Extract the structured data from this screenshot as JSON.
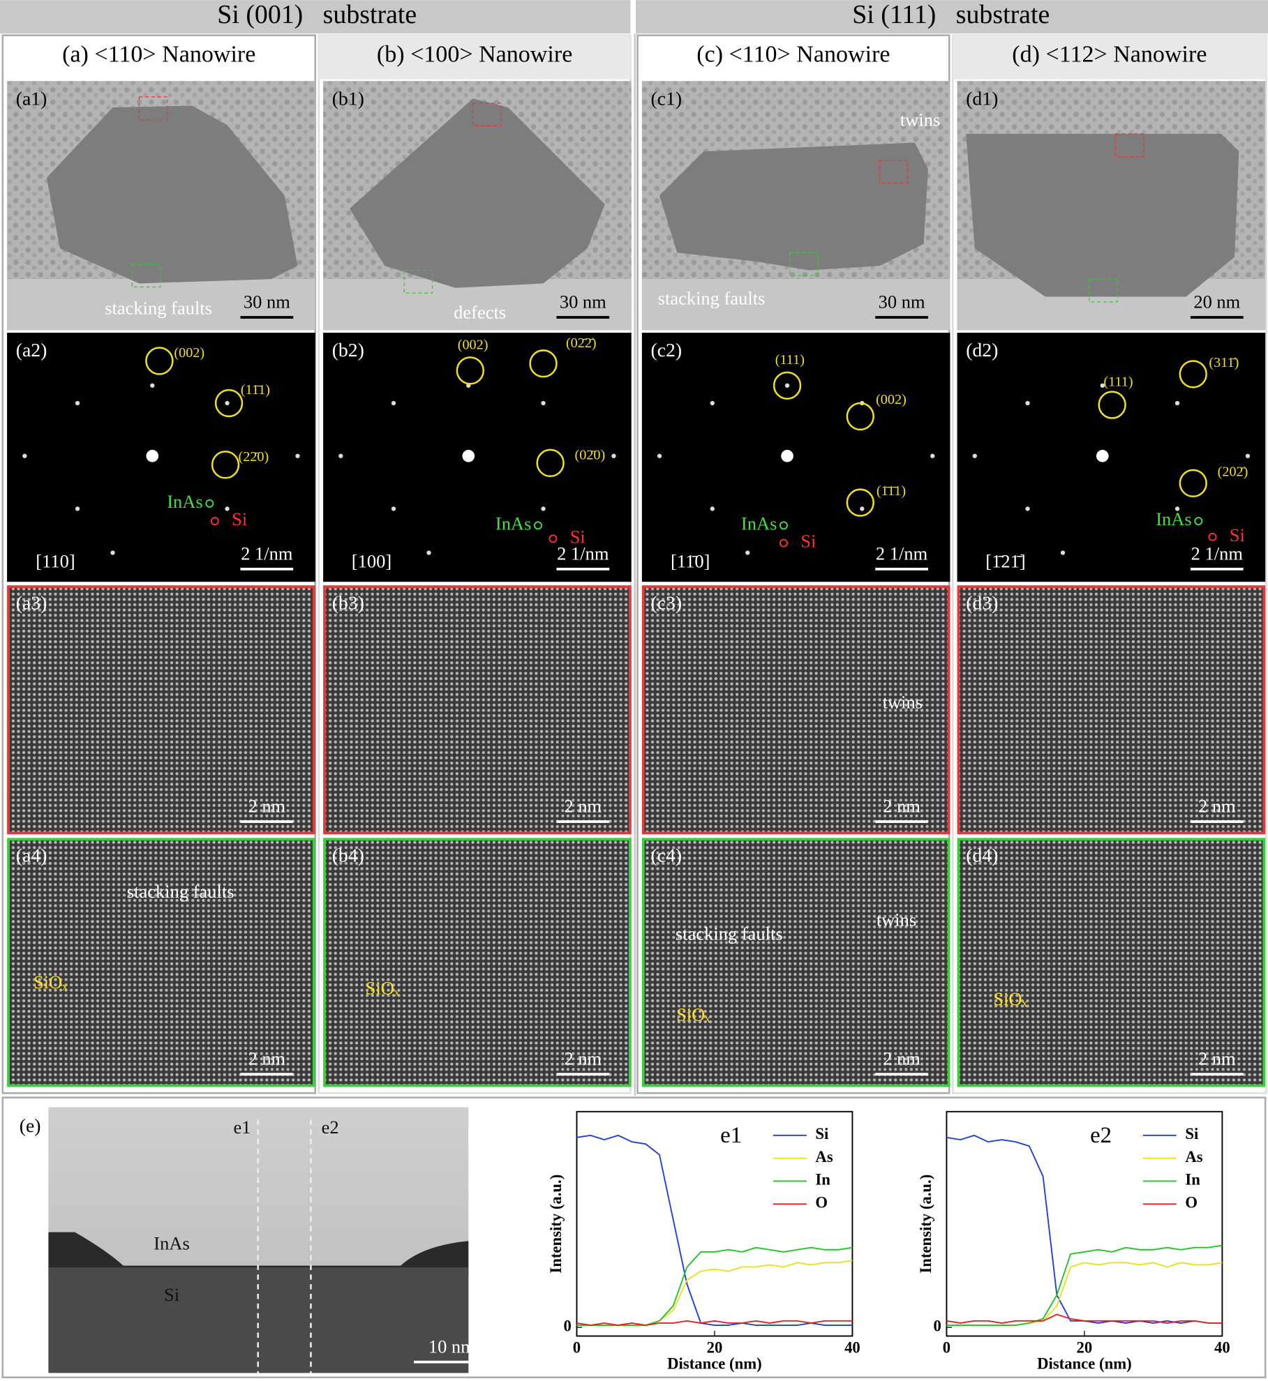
{
  "header": {
    "left": "Si (001)   substrate",
    "right": "Si (111)   substrate"
  },
  "columns": [
    {
      "title": "(a) <110> Nanowire"
    },
    {
      "title": "(b) <100> Nanowire"
    },
    {
      "title": "(c) <110> Nanowire"
    },
    {
      "title": "(d) <112> Nanowire"
    }
  ],
  "panels": {
    "a1": {
      "label": "(a1)",
      "scale": "30 nm",
      "notes": [
        "stacking faults"
      ]
    },
    "a2": {
      "label": "(a2)",
      "scale": "2 1/nm",
      "zone": "[110]",
      "spots": [
        "(002)",
        "(11̄1)",
        "(22̄0)"
      ],
      "materials": [
        "InAs",
        "Si"
      ]
    },
    "a3": {
      "label": "(a3)",
      "scale": "2 nm"
    },
    "a4": {
      "label": "(a4)",
      "scale": "2 nm",
      "notes": [
        "stacking faults",
        "SiOₓ"
      ]
    },
    "b1": {
      "label": "(b1)",
      "scale": "30 nm",
      "notes": [
        "defects"
      ]
    },
    "b2": {
      "label": "(b2)",
      "scale": "2 1/nm",
      "zone": "[100]",
      "spots": [
        "(002)",
        "(02̄2̄)",
        "(02̄0)"
      ],
      "materials": [
        "InAs",
        "Si"
      ]
    },
    "b3": {
      "label": "(b3)",
      "scale": "2 nm"
    },
    "b4": {
      "label": "(b4)",
      "scale": "2 nm",
      "notes": [
        "SiOₓ"
      ]
    },
    "c1": {
      "label": "(c1)",
      "scale": "30 nm",
      "notes": [
        "twins",
        "stacking faults"
      ]
    },
    "c2": {
      "label": "(c2)",
      "scale": "2 1/nm",
      "zone": "[11̄0]",
      "spots": [
        "(111)",
        "(002)",
        "(1̄1̄1)"
      ],
      "materials": [
        "InAs",
        "Si"
      ]
    },
    "c3": {
      "label": "(c3)",
      "scale": "2 nm",
      "notes": [
        "twins"
      ]
    },
    "c4": {
      "label": "(c4)",
      "scale": "2 nm",
      "notes": [
        "twins",
        "stacking faults",
        "SiOₓ"
      ]
    },
    "d1": {
      "label": "(d1)",
      "scale": "20 nm"
    },
    "d2": {
      "label": "(d2)",
      "scale": "2 1/nm",
      "zone": "[1̄21̄]",
      "spots": [
        "(111)",
        "(311̄)",
        "(202̄)"
      ],
      "materials": [
        "InAs",
        "Si"
      ]
    },
    "d3": {
      "label": "(d3)",
      "scale": "2 nm"
    },
    "d4": {
      "label": "(d4)",
      "scale": "2 nm",
      "notes": [
        "SiOₓ"
      ]
    }
  },
  "bottom": {
    "label": "(e)",
    "scale": "10 nm",
    "notes": [
      "e1",
      "e2",
      "InAs",
      "Si"
    ]
  },
  "chart_data": [
    {
      "type": "line",
      "title": "e1",
      "xlabel": "Distance (nm)",
      "ylabel": "Intensity (a.u.)",
      "x": [
        0,
        2,
        4,
        6,
        8,
        10,
        12,
        14,
        16,
        18,
        20,
        22,
        24,
        26,
        28,
        30,
        32,
        34,
        36,
        38,
        40
      ],
      "xlim": [
        0,
        40
      ],
      "xticks": [
        0,
        20,
        40
      ],
      "ylim": [
        -0.4,
        10
      ],
      "yticks": [
        0
      ],
      "legend": "upper right",
      "series": [
        {
          "name": "Si",
          "color": "#1f3fd8",
          "values": [
            8.8,
            8.9,
            8.7,
            8.9,
            8.6,
            8.5,
            8.0,
            5.0,
            2.0,
            0.2,
            0.1,
            0.1,
            0.2,
            0.1,
            0.1,
            0.1,
            0.1,
            0.2,
            0.1,
            0.1,
            0.1
          ]
        },
        {
          "name": "As",
          "color": "#e8e020",
          "values": [
            0.1,
            0.1,
            0.1,
            0.1,
            0.1,
            0.1,
            0.3,
            0.8,
            2.2,
            2.6,
            2.7,
            2.6,
            2.8,
            2.8,
            2.9,
            2.8,
            3.0,
            2.9,
            3.0,
            3.0,
            3.1
          ]
        },
        {
          "name": "In",
          "color": "#22c422",
          "values": [
            0.1,
            0.1,
            0.1,
            0.1,
            0.1,
            0.1,
            0.3,
            1.0,
            2.8,
            3.5,
            3.5,
            3.6,
            3.5,
            3.7,
            3.6,
            3.5,
            3.6,
            3.7,
            3.6,
            3.6,
            3.7
          ]
        },
        {
          "name": "O",
          "color": "#e82020",
          "values": [
            0.2,
            0.1,
            0.2,
            0.1,
            0.2,
            0.1,
            0.2,
            0.2,
            0.3,
            0.2,
            0.3,
            0.2,
            0.2,
            0.3,
            0.2,
            0.3,
            0.3,
            0.2,
            0.3,
            0.3,
            0.3
          ]
        }
      ]
    },
    {
      "type": "line",
      "title": "e2",
      "xlabel": "Distance (nm)",
      "ylabel": "Intensity (a.u.)",
      "x": [
        0,
        2,
        4,
        6,
        8,
        10,
        12,
        14,
        16,
        18,
        20,
        22,
        24,
        26,
        28,
        30,
        32,
        34,
        36,
        38,
        40
      ],
      "xlim": [
        0,
        40
      ],
      "xticks": [
        0,
        20,
        40
      ],
      "ylim": [
        -0.4,
        10
      ],
      "yticks": [
        0
      ],
      "legend": "upper right",
      "series": [
        {
          "name": "Si",
          "color": "#1f3fd8",
          "values": [
            8.8,
            8.7,
            8.9,
            8.6,
            8.7,
            8.6,
            8.4,
            7.0,
            1.5,
            0.3,
            0.3,
            0.2,
            0.3,
            0.2,
            0.3,
            0.2,
            0.3,
            0.2,
            0.3,
            0.2,
            0.2
          ]
        },
        {
          "name": "As",
          "color": "#e8e020",
          "values": [
            0.1,
            0.1,
            0.1,
            0.1,
            0.1,
            0.1,
            0.2,
            0.3,
            1.0,
            2.8,
            3.0,
            2.9,
            3.0,
            3.0,
            2.9,
            3.0,
            2.8,
            3.0,
            2.9,
            2.9,
            3.0
          ]
        },
        {
          "name": "In",
          "color": "#22c422",
          "values": [
            0.1,
            0.1,
            0.1,
            0.1,
            0.1,
            0.1,
            0.2,
            0.4,
            1.5,
            3.4,
            3.5,
            3.6,
            3.5,
            3.7,
            3.6,
            3.6,
            3.7,
            3.6,
            3.7,
            3.7,
            3.8
          ]
        },
        {
          "name": "O",
          "color": "#e82020",
          "values": [
            0.3,
            0.2,
            0.3,
            0.3,
            0.2,
            0.3,
            0.3,
            0.3,
            0.6,
            0.4,
            0.3,
            0.3,
            0.3,
            0.3,
            0.3,
            0.3,
            0.2,
            0.3,
            0.3,
            0.2,
            0.2
          ]
        }
      ]
    }
  ]
}
